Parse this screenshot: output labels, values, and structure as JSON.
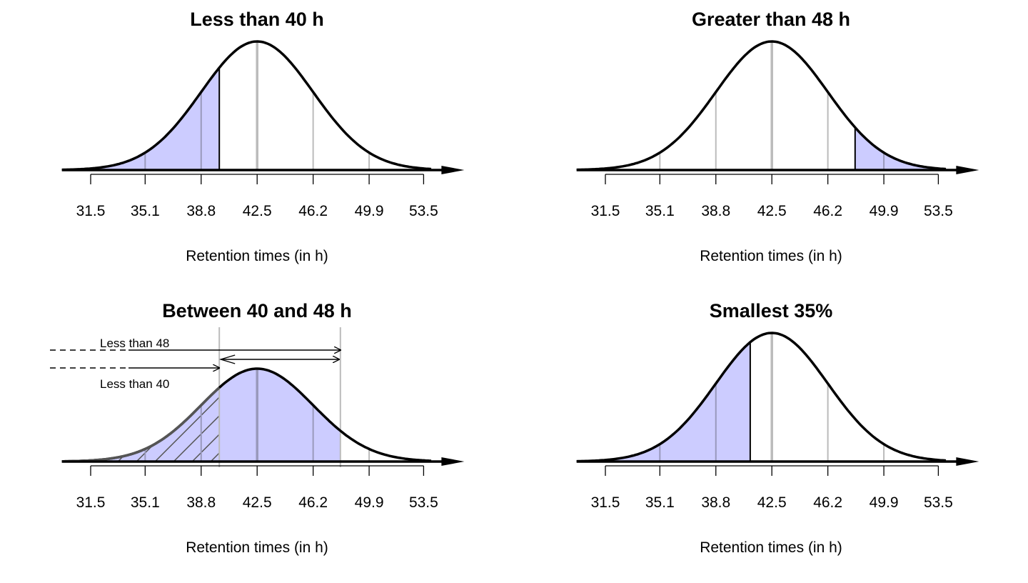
{
  "chart_data": [
    {
      "type": "area",
      "title": "Less than 40 h",
      "xlabel": "Retention times (in h)",
      "distribution": "normal",
      "mean": 42.5,
      "sd": 3.7,
      "ticks": [
        "31.5",
        "35.1",
        "38.8",
        "42.5",
        "46.2",
        "49.9",
        "53.5"
      ],
      "tick_values": [
        31.5,
        35.1,
        38.8,
        42.5,
        46.2,
        49.9,
        53.5
      ],
      "shade": [
        null,
        40
      ]
    },
    {
      "type": "area",
      "title": "Greater than 48 h",
      "xlabel": "Retention times (in h)",
      "distribution": "normal",
      "mean": 42.5,
      "sd": 3.7,
      "ticks": [
        "31.5",
        "35.1",
        "38.8",
        "42.5",
        "46.2",
        "49.9",
        "53.5"
      ],
      "tick_values": [
        31.5,
        35.1,
        38.8,
        42.5,
        46.2,
        49.9,
        53.5
      ],
      "shade": [
        48,
        null
      ]
    },
    {
      "type": "area",
      "title": "Between 40 and 48 h",
      "xlabel": "Retention times (in h)",
      "distribution": "normal",
      "mean": 42.5,
      "sd": 3.7,
      "ticks": [
        "31.5",
        "35.1",
        "38.8",
        "42.5",
        "46.2",
        "49.9",
        "53.5"
      ],
      "tick_values": [
        31.5,
        35.1,
        38.8,
        42.5,
        46.2,
        49.9,
        53.5
      ],
      "shade": [
        null,
        48
      ],
      "hatch": [
        null,
        40
      ],
      "annotations": [
        "Less than 48",
        "Less than 40"
      ],
      "markers": [
        40,
        48
      ]
    },
    {
      "type": "area",
      "title": "Smallest 35%",
      "xlabel": "Retention times (in h)",
      "distribution": "normal",
      "mean": 42.5,
      "sd": 3.7,
      "ticks": [
        "31.5",
        "35.1",
        "38.8",
        "42.5",
        "46.2",
        "49.9",
        "53.5"
      ],
      "tick_values": [
        31.5,
        35.1,
        38.8,
        42.5,
        46.2,
        49.9,
        53.5
      ],
      "shade": [
        null,
        41.07
      ]
    }
  ],
  "colors": {
    "shade": "#ccccff",
    "curve": "#000000",
    "grid": "#bbbbbb"
  }
}
